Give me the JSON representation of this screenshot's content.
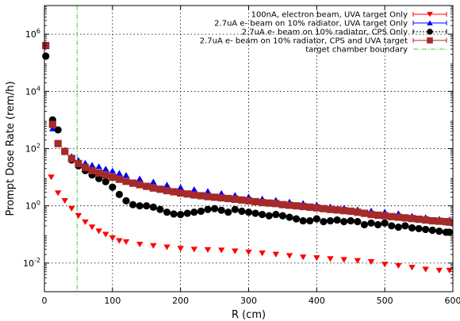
{
  "chart_data": {
    "type": "scatter",
    "xlabel": "R (cm)",
    "ylabel": "Prompt Dose Rate (rem/h)",
    "xlim": [
      0,
      600
    ],
    "ylim_log10": [
      -3,
      7
    ],
    "y_scale": "log",
    "x_ticks": [
      0,
      100,
      200,
      300,
      400,
      500,
      600
    ],
    "x_tick_labels": [
      "0",
      "100",
      "200",
      "300",
      "400",
      "500",
      "600"
    ],
    "y_tick_exponents": [
      -2,
      0,
      2,
      4,
      6
    ],
    "y_tick_base": "10",
    "grid": true,
    "legend_position": "top-right",
    "vline": {
      "x": 48,
      "label": "target chamber boundary",
      "color": "#44cc44"
    },
    "series": [
      {
        "name": "100nA, electron beam, UVA target Only",
        "marker": "triangle-down",
        "color": "#ff0000",
        "x": [
          10,
          20,
          30,
          40,
          50,
          60,
          70,
          80,
          90,
          100,
          110,
          120,
          140,
          160,
          180,
          200,
          220,
          240,
          260,
          280,
          300,
          320,
          340,
          360,
          380,
          400,
          420,
          440,
          460,
          480,
          500,
          520,
          540,
          560,
          580,
          595
        ],
        "y": [
          10,
          2.8,
          1.5,
          0.8,
          0.45,
          0.27,
          0.18,
          0.13,
          0.1,
          0.075,
          0.06,
          0.055,
          0.045,
          0.04,
          0.036,
          0.032,
          0.03,
          0.029,
          0.028,
          0.026,
          0.024,
          0.022,
          0.02,
          0.018,
          0.016,
          0.015,
          0.014,
          0.013,
          0.012,
          0.011,
          0.009,
          0.008,
          0.007,
          0.006,
          0.0055,
          0.0055
        ]
      },
      {
        "name": "2.7uA e- beam on 10% radiator, UVA target Only",
        "marker": "triangle-up",
        "color": "#0000ff",
        "x": [
          2,
          12,
          20,
          30,
          40,
          50,
          60,
          70,
          80,
          90,
          100,
          110,
          120,
          140,
          160,
          180,
          200,
          220,
          240,
          260,
          280,
          300,
          320,
          340,
          360,
          380,
          400,
          420,
          440,
          460,
          480,
          500,
          520,
          540,
          560,
          580,
          595
        ],
        "y": [
          400000,
          500,
          150,
          90,
          55,
          40,
          32,
          27,
          24,
          20,
          17,
          14,
          12,
          9,
          7,
          5.5,
          4.5,
          3.8,
          3.3,
          2.8,
          2.4,
          2.1,
          1.8,
          1.6,
          1.4,
          1.25,
          1.1,
          0.95,
          0.85,
          0.75,
          0.68,
          0.62,
          0.55,
          0.45,
          0.4,
          0.35,
          0.33
        ]
      },
      {
        "name": "2.7uA e- beam on 10% radiator, CPS Only",
        "marker": "circle",
        "color": "#000000",
        "x": [
          2,
          12,
          20,
          30,
          40,
          50,
          60,
          70,
          80,
          90,
          100,
          110,
          120,
          130,
          140,
          150,
          160,
          170,
          180,
          190,
          200,
          210,
          220,
          230,
          240,
          250,
          260,
          270,
          280,
          290,
          300,
          310,
          320,
          330,
          340,
          350,
          360,
          370,
          380,
          390,
          400,
          410,
          420,
          430,
          440,
          450,
          460,
          470,
          480,
          490,
          500,
          510,
          520,
          530,
          540,
          550,
          560,
          570,
          580,
          590,
          595
        ],
        "y": [
          170000,
          1000,
          450,
          80,
          40,
          25,
          17,
          12,
          9,
          7,
          4.5,
          2.5,
          1.5,
          1.1,
          1.0,
          1.0,
          0.9,
          0.75,
          0.6,
          0.52,
          0.5,
          0.55,
          0.6,
          0.65,
          0.75,
          0.8,
          0.7,
          0.6,
          0.75,
          0.65,
          0.6,
          0.55,
          0.5,
          0.45,
          0.5,
          0.45,
          0.4,
          0.35,
          0.3,
          0.3,
          0.35,
          0.28,
          0.3,
          0.32,
          0.28,
          0.3,
          0.28,
          0.22,
          0.25,
          0.22,
          0.25,
          0.2,
          0.18,
          0.2,
          0.17,
          0.16,
          0.15,
          0.14,
          0.13,
          0.12,
          0.12
        ]
      },
      {
        "name": "2.7uA e- beam on 10% radiator, CPS and UVA target",
        "marker": "square",
        "color": "#a52a2a",
        "x": [
          2,
          12,
          20,
          30,
          40,
          50,
          60,
          70,
          80,
          90,
          100,
          110,
          120,
          130,
          140,
          150,
          160,
          170,
          180,
          190,
          200,
          210,
          220,
          230,
          240,
          250,
          260,
          270,
          280,
          290,
          300,
          310,
          320,
          330,
          340,
          350,
          360,
          370,
          380,
          390,
          400,
          410,
          420,
          430,
          440,
          450,
          460,
          470,
          480,
          490,
          500,
          510,
          520,
          530,
          540,
          550,
          560,
          570,
          580,
          590,
          595
        ],
        "y": [
          400000,
          700,
          150,
          80,
          45,
          30,
          22,
          17,
          14,
          12,
          10,
          8.5,
          7.2,
          6.2,
          5.5,
          4.8,
          4.2,
          3.8,
          3.4,
          3.1,
          2.8,
          2.6,
          2.4,
          2.25,
          2.1,
          2.0,
          1.9,
          1.8,
          1.7,
          1.6,
          1.5,
          1.4,
          1.3,
          1.25,
          1.2,
          1.1,
          1.05,
          1.0,
          0.95,
          0.9,
          0.85,
          0.8,
          0.75,
          0.72,
          0.68,
          0.65,
          0.6,
          0.55,
          0.5,
          0.47,
          0.45,
          0.42,
          0.4,
          0.38,
          0.36,
          0.34,
          0.32,
          0.3,
          0.29,
          0.28,
          0.27
        ]
      }
    ]
  }
}
